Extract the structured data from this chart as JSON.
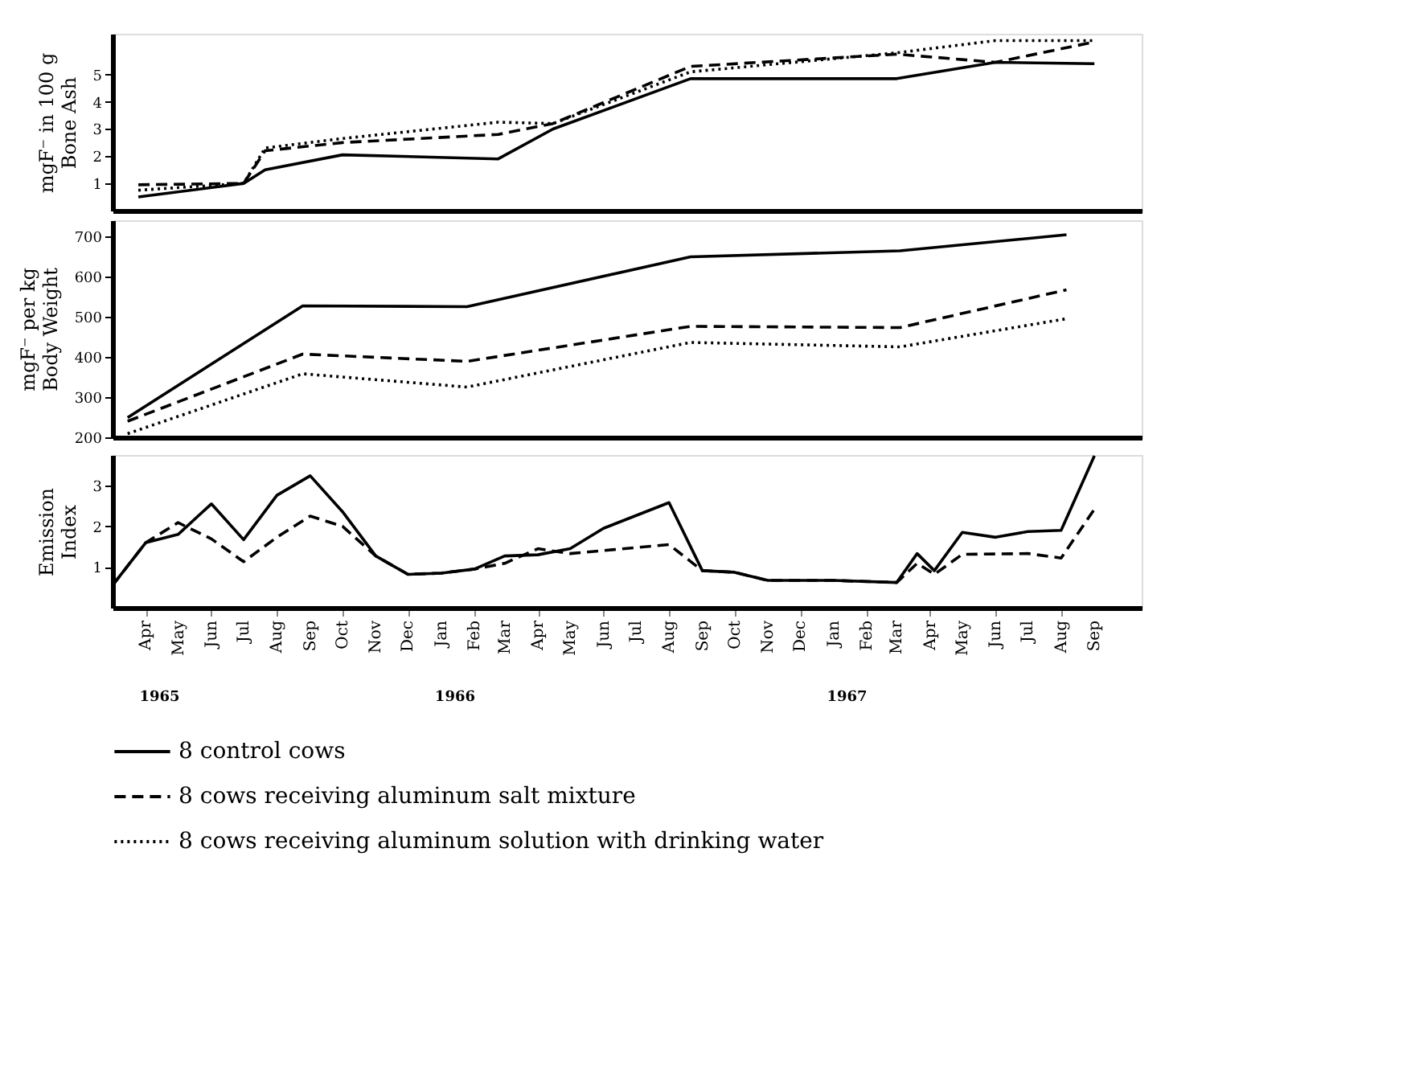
{
  "chart_data": [
    {
      "type": "line",
      "ylabel": "mgF⁻ in 100 g\nBone Ash",
      "xlim": [
        "1965-03-01",
        "1967-10-15"
      ],
      "ylim": [
        0,
        6.5
      ],
      "yticks": [
        1,
        2,
        3,
        4,
        5
      ],
      "tick_labels": "y",
      "grid": false,
      "legend": "bottom",
      "x": [
        "1965-03-25",
        "1965-07",
        "1965-07-21",
        "1965-10",
        "1966-02-23",
        "1966-04-15",
        "1966-08-21",
        "1967-03",
        "1967-06",
        "1967-09"
      ],
      "series": [
        {
          "name": "8 control cows",
          "color": "#000000",
          "line_style": "solid",
          "values": [
            0.5,
            1.0,
            1.5,
            2.05,
            1.9,
            3.0,
            4.85,
            4.85,
            5.45,
            5.4
          ]
        },
        {
          "name": "8 cows receiving aluminum salt mixture",
          "color": "#000000",
          "line_style": "dashed",
          "values": [
            0.95,
            1.0,
            2.2,
            2.5,
            2.8,
            3.2,
            5.3,
            5.75,
            5.45,
            6.2
          ]
        },
        {
          "name": "8 cows receiving aluminum solution with drinking water",
          "color": "#000000",
          "line_style": "dotted",
          "values": [
            0.75,
            1.0,
            2.3,
            2.65,
            3.25,
            3.2,
            5.1,
            5.8,
            6.25,
            6.25
          ]
        }
      ]
    },
    {
      "type": "line",
      "ylabel": "mgF⁻ per kg\nBody Weight",
      "xlim": [
        "1965-03-01",
        "1967-10-15"
      ],
      "ylim": [
        200,
        740
      ],
      "yticks": [
        200,
        300,
        400,
        500,
        600,
        700
      ],
      "tick_labels": "y",
      "grid": false,
      "legend": "bottom",
      "x": [
        "1965-03-15",
        "1965-08-25",
        "1966-01-25",
        "1966-08-21",
        "1967-03-04",
        "1967-08-06"
      ],
      "series": [
        {
          "name": "8 control cows",
          "color": "#000000",
          "line_style": "solid",
          "values": [
            249,
            527,
            525,
            649,
            664,
            704
          ]
        },
        {
          "name": "8 cows receiving aluminum salt mixture",
          "color": "#000000",
          "line_style": "dashed",
          "values": [
            240,
            407,
            389,
            476,
            473,
            567
          ]
        },
        {
          "name": "8 cows receiving aluminum solution with drinking water",
          "color": "#000000",
          "line_style": "dotted",
          "values": [
            209,
            358,
            325,
            436,
            425,
            495
          ]
        }
      ]
    },
    {
      "type": "line",
      "ylabel": "Emission\nIndex",
      "xlim": [
        "1965-03-01",
        "1967-10-15"
      ],
      "ylim": [
        0,
        3.75
      ],
      "yticks": [
        1,
        2,
        3
      ],
      "grid": false,
      "legend": "bottom",
      "xticks": [
        {
          "value": "1965-04",
          "label": "Apr"
        },
        {
          "value": "1965-05",
          "label": "May"
        },
        {
          "value": "1965-06",
          "label": "Jun"
        },
        {
          "value": "1965-07",
          "label": "Jul"
        },
        {
          "value": "1965-08",
          "label": "Aug"
        },
        {
          "value": "1965-09",
          "label": "Sep"
        },
        {
          "value": "1965-10",
          "label": "Oct"
        },
        {
          "value": "1965-11",
          "label": "Nov"
        },
        {
          "value": "1965-12",
          "label": "Dec"
        },
        {
          "value": "1966-01",
          "label": "Jan"
        },
        {
          "value": "1966-02",
          "label": "Feb"
        },
        {
          "value": "1966-03",
          "label": "Mar"
        },
        {
          "value": "1966-04",
          "label": "Apr"
        },
        {
          "value": "1966-05",
          "label": "May"
        },
        {
          "value": "1966-06",
          "label": "Jun"
        },
        {
          "value": "1966-07",
          "label": "Jul"
        },
        {
          "value": "1966-08",
          "label": "Aug"
        },
        {
          "value": "1966-09",
          "label": "Sep"
        },
        {
          "value": "1966-10",
          "label": "Oct"
        },
        {
          "value": "1966-11",
          "label": "Nov"
        },
        {
          "value": "1966-12",
          "label": "Dec"
        },
        {
          "value": "1967-01",
          "label": "Jan"
        },
        {
          "value": "1967-02",
          "label": "Feb"
        },
        {
          "value": "1967-03",
          "label": "Mar"
        },
        {
          "value": "1967-04",
          "label": "Apr"
        },
        {
          "value": "1967-05",
          "label": "May"
        },
        {
          "value": "1967-06",
          "label": "Jun"
        },
        {
          "value": "1967-07",
          "label": "Jul"
        },
        {
          "value": "1967-08",
          "label": "Aug"
        },
        {
          "value": "1967-09",
          "label": "Sep"
        }
      ],
      "annotations": [
        "1965",
        "1966",
        "1967"
      ],
      "series": [
        {
          "name": "8 control cows",
          "color": "#000000",
          "line_style": "solid",
          "x": [
            "1965-03-01",
            "1965-04",
            "1965-05",
            "1965-06",
            "1965-07",
            "1965-08",
            "1965-09",
            "1965-10",
            "1965-11",
            "1965-12",
            "1966-01",
            "1966-02",
            "1966-03",
            "1966-04",
            "1966-05",
            "1966-06",
            "1966-08",
            "1966-09",
            "1966-10",
            "1966-11",
            "1967-01",
            "1967-03",
            "1967-03-20",
            "1967-04-05",
            "1967-05",
            "1967-06",
            "1967-07",
            "1967-08",
            "1967-09"
          ],
          "values": [
            0.55,
            1.6,
            1.8,
            2.55,
            1.67,
            2.76,
            3.24,
            2.36,
            1.27,
            0.82,
            0.85,
            0.95,
            1.27,
            1.3,
            1.45,
            1.95,
            2.58,
            0.91,
            0.87,
            0.67,
            0.67,
            0.62,
            1.33,
            0.91,
            1.85,
            1.73,
            1.87,
            1.9,
            3.73
          ]
        },
        {
          "name": "8 cows receiving aluminum salt mixture",
          "color": "#000000",
          "line_style": "dashed",
          "x": [
            "1965-03-01",
            "1965-04",
            "1965-05",
            "1965-06",
            "1965-07",
            "1965-08",
            "1965-09",
            "1965-10",
            "1965-11",
            "1965-12",
            "1966-01",
            "1966-02",
            "1966-03",
            "1966-04",
            "1966-05",
            "1966-08",
            "1966-09",
            "1966-10",
            "1966-11",
            "1967-01",
            "1967-03",
            "1967-03-20",
            "1967-04-05",
            "1967-05",
            "1967-07",
            "1967-08",
            "1967-09"
          ],
          "values": [
            0.55,
            1.6,
            2.09,
            1.69,
            1.13,
            1.73,
            2.25,
            2.0,
            1.27,
            0.82,
            0.85,
            0.95,
            1.09,
            1.45,
            1.33,
            1.55,
            0.91,
            0.87,
            0.67,
            0.67,
            0.62,
            1.09,
            0.82,
            1.31,
            1.33,
            1.22,
            2.42
          ]
        }
      ]
    }
  ]
}
